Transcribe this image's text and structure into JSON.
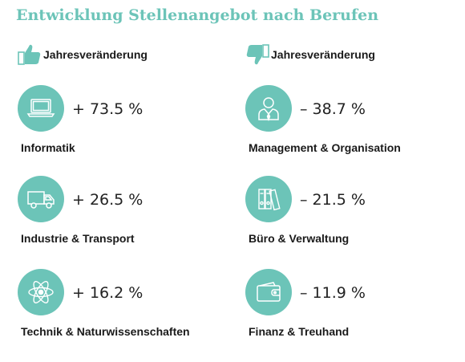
{
  "title": "Entwicklung Stellenangebot nach Berufen",
  "colors": {
    "accent": "#6cc4b8"
  },
  "columns": [
    {
      "header": {
        "label": "Jahresveränderung",
        "icon": "thumbs-up-icon"
      },
      "items": [
        {
          "value": "+ 73.5 %",
          "label": "Informatik",
          "icon": "laptop-icon"
        },
        {
          "value": "+ 26.5 %",
          "label": "Industrie & Transport",
          "icon": "truck-icon"
        },
        {
          "value": "+ 16.2 %",
          "label": "Technik & Naturwissenschaften",
          "icon": "atom-icon"
        }
      ]
    },
    {
      "header": {
        "label": "Jahresveränderung",
        "icon": "thumbs-down-icon"
      },
      "items": [
        {
          "value": "– 38.7 %",
          "label": "Management & Organisation",
          "icon": "manager-icon"
        },
        {
          "value": "– 21.5 %",
          "label": "Büro & Verwaltung",
          "icon": "binders-icon"
        },
        {
          "value": "– 11.9 %",
          "label": "Finanz & Treuhand",
          "icon": "wallet-icon"
        }
      ]
    }
  ]
}
